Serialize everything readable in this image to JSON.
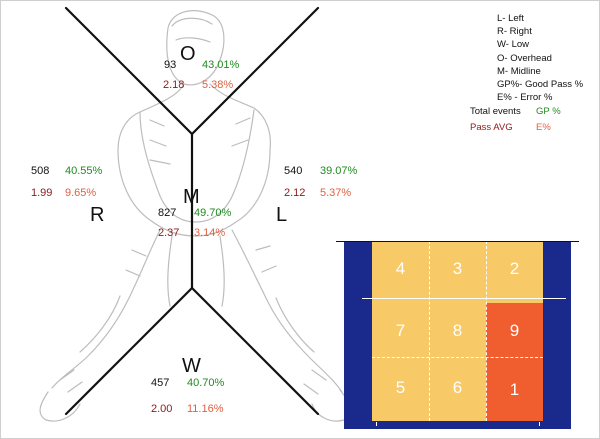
{
  "legend": {
    "items": [
      "L- Left",
      "R- Right",
      "W- Low",
      "O- Overhead",
      "M- Midline",
      "GP%- Good Pass %",
      "E% - Error %"
    ],
    "key_total": "Total events",
    "key_gp": "GP %",
    "key_avg": "Pass AVG",
    "key_e": "E%"
  },
  "zones": {
    "overhead": {
      "letter": "O",
      "events": "93",
      "gp": "43.01%",
      "avg": "2.18",
      "e": "5.38%"
    },
    "midline": {
      "letter": "M",
      "events": "827",
      "gp": "49.70%",
      "avg": "2.37",
      "e": "3.14%"
    },
    "right": {
      "letter": "R",
      "events": "508",
      "gp": "40.55%",
      "avg": "1.99",
      "e": "9.65%"
    },
    "left": {
      "letter": "L",
      "events": "540",
      "gp": "39.07%",
      "avg": "2.12",
      "e": "5.37%"
    },
    "low": {
      "letter": "W",
      "events": "457",
      "gp": "40.70%",
      "avg": "2.00",
      "e": "11.16%"
    }
  },
  "court": {
    "zones": [
      "4",
      "3",
      "2",
      "7",
      "8",
      "9",
      "5",
      "6",
      "1"
    ],
    "highlight": [
      "9",
      "1"
    ],
    "colors": {
      "zone": "#f7c967",
      "highlight": "#f05d2f",
      "outside": "#1a2a8c",
      "lines": "#ffffff"
    }
  },
  "colors": {
    "events": "#111111",
    "gp": "#1f8a1f",
    "avg": "#8b1a1a",
    "e": "#e06040"
  }
}
